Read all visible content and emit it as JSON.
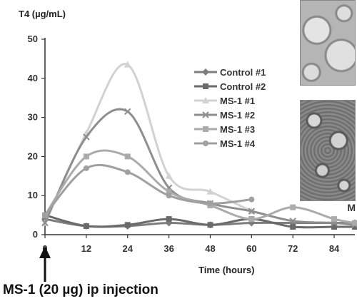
{
  "chart_data": {
    "type": "line",
    "title": "",
    "ylabel": "T4 (µg/mL)",
    "xlabel": "Time (hours)",
    "ylim": [
      0,
      50
    ],
    "xlim": [
      0,
      90
    ],
    "yticks": [
      "0",
      "10",
      "20",
      "30",
      "40",
      "50"
    ],
    "xticks": [
      "0",
      "12",
      "24",
      "36",
      "48",
      "60",
      "72",
      "84"
    ],
    "legend_position": "right",
    "grid": false,
    "series": [
      {
        "name": "Control #1",
        "color": "#7d7d7d",
        "marker": "diamond",
        "x": [
          0,
          12,
          24,
          36,
          48,
          60,
          72,
          84,
          90
        ],
        "y": [
          4,
          2.2,
          2.2,
          3,
          2.5,
          3,
          3,
          3,
          3
        ]
      },
      {
        "name": "Control #2",
        "color": "#6a6a6a",
        "marker": "square",
        "x": [
          0,
          12,
          24,
          36,
          48,
          60,
          72,
          84,
          90
        ],
        "y": [
          5,
          2.2,
          2.5,
          4,
          2.5,
          4,
          2,
          2,
          2
        ]
      },
      {
        "name": "MS-1 #1",
        "color": "#d2d2d2",
        "marker": "triangle",
        "x": [
          0,
          12,
          24,
          36,
          48,
          60
        ],
        "y": [
          3,
          26,
          43.5,
          15,
          11,
          6
        ]
      },
      {
        "name": "MS-1 #2",
        "color": "#8e8e8e",
        "marker": "x",
        "x": [
          0,
          12,
          24,
          36,
          48,
          60,
          72,
          84,
          90
        ],
        "y": [
          3,
          25,
          31.5,
          12,
          8,
          6,
          3.5,
          3,
          2.5
        ]
      },
      {
        "name": "MS-1 #3",
        "color": "#ababab",
        "marker": "square",
        "x": [
          0,
          12,
          24,
          36,
          48,
          60,
          72,
          84,
          90
        ],
        "y": [
          5,
          20,
          20,
          11,
          7.5,
          4,
          7,
          4,
          3
        ]
      },
      {
        "name": "MS-1 #4",
        "color": "#a0a0a0",
        "marker": "circle",
        "x": [
          0,
          12,
          24,
          36,
          48,
          60
        ],
        "y": [
          5,
          17,
          16,
          10,
          8,
          9
        ]
      }
    ]
  },
  "annotation": {
    "text": "MS-1 (20 µg) ip injection"
  },
  "edge_label": "M"
}
